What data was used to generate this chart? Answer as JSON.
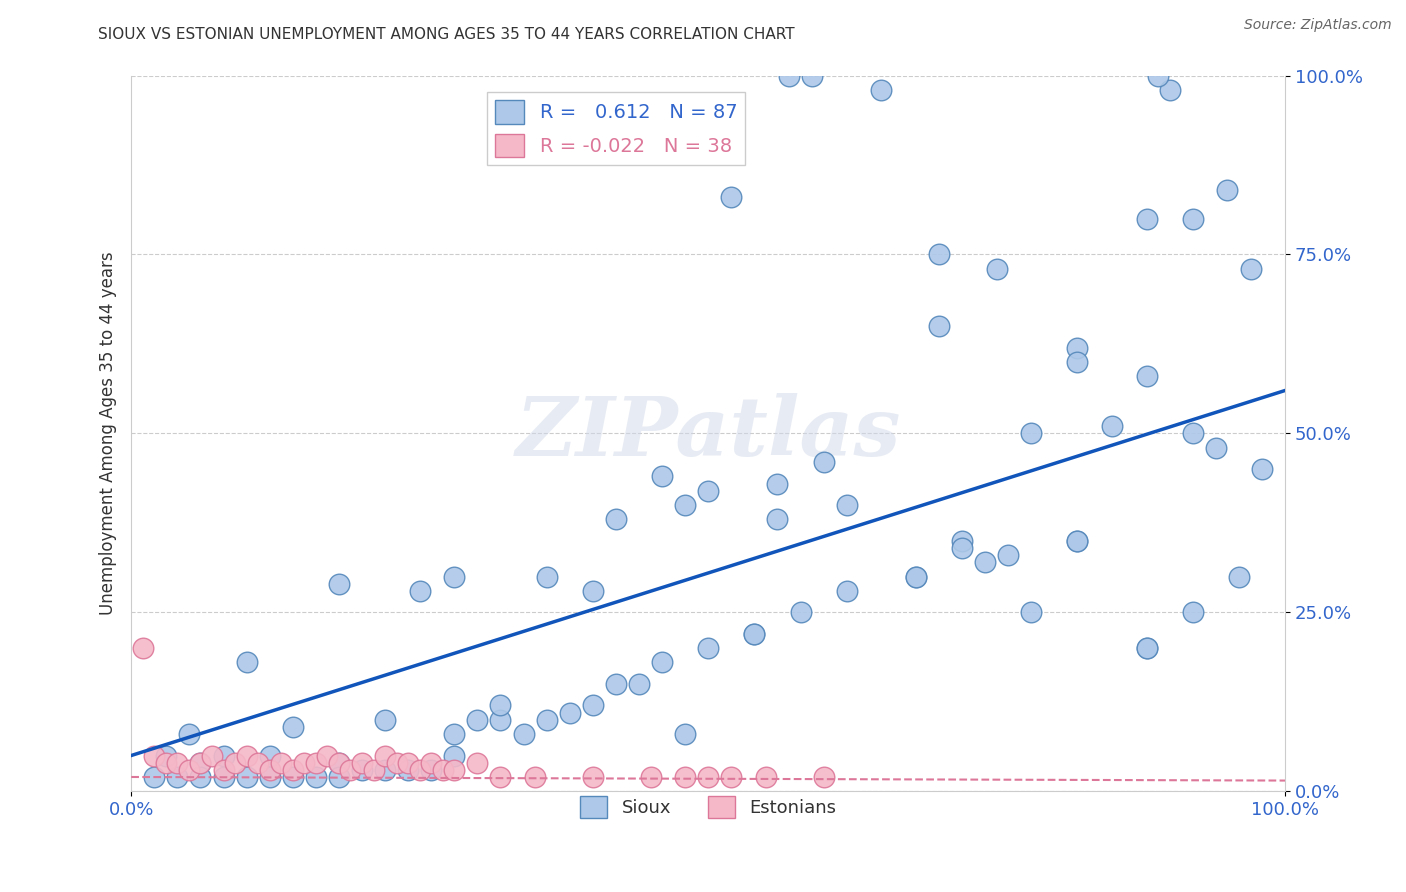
{
  "title": "SIOUX VS ESTONIAN UNEMPLOYMENT AMONG AGES 35 TO 44 YEARS CORRELATION CHART",
  "source": "Source: ZipAtlas.com",
  "ylabel": "Unemployment Among Ages 35 to 44 years",
  "xlim": [
    0,
    1
  ],
  "ylim": [
    0,
    1
  ],
  "xticks": [
    0.0,
    1.0
  ],
  "yticks": [
    0.0,
    0.25,
    0.5,
    0.75,
    1.0
  ],
  "xticklabels": [
    "0.0%",
    "100.0%"
  ],
  "yticklabels": [
    "0.0%",
    "25.0%",
    "50.0%",
    "75.0%",
    "100.0%"
  ],
  "sioux_color": "#adc8e8",
  "sioux_edge": "#5588bb",
  "estonian_color": "#f5b8c8",
  "estonian_edge": "#dd7799",
  "sioux_R": 0.612,
  "sioux_N": 87,
  "estonian_R": -0.022,
  "estonian_N": 38,
  "sioux_line_color": "#1155bb",
  "estonian_line_color": "#dd7799",
  "sioux_line_x0": 0.0,
  "sioux_line_y0": 0.05,
  "sioux_line_x1": 1.0,
  "sioux_line_y1": 0.56,
  "estonian_line_x0": 0.0,
  "estonian_line_y0": 0.02,
  "estonian_line_x1": 1.0,
  "estonian_line_y1": 0.015,
  "watermark_text": "ZIPatlas",
  "background_color": "#ffffff",
  "legend_text_color": "#3366cc",
  "sioux_x": [
    0.57,
    0.59,
    0.65,
    0.9,
    0.89,
    0.52,
    0.7,
    0.75,
    0.88,
    0.92,
    0.95,
    0.97,
    0.92,
    0.85,
    0.78,
    0.82,
    0.7,
    0.88,
    0.6,
    0.36,
    0.4,
    0.28,
    0.25,
    0.18,
    0.14,
    0.1,
    0.08,
    0.05,
    0.03,
    0.06,
    0.12,
    0.18,
    0.22,
    0.28,
    0.32,
    0.38,
    0.42,
    0.48,
    0.54,
    0.56,
    0.62,
    0.68,
    0.72,
    0.78,
    0.82,
    0.88,
    0.92,
    0.96,
    0.98,
    0.02,
    0.04,
    0.06,
    0.08,
    0.1,
    0.12,
    0.14,
    0.16,
    0.18,
    0.2,
    0.22,
    0.24,
    0.26,
    0.28,
    0.3,
    0.34,
    0.36,
    0.4,
    0.44,
    0.46,
    0.5,
    0.54,
    0.58,
    0.62,
    0.68,
    0.74,
    0.82,
    0.88,
    0.94,
    0.5,
    0.46,
    0.32,
    0.56,
    0.48,
    0.42,
    0.72,
    0.76,
    0.82
  ],
  "sioux_y": [
    1.0,
    1.0,
    0.98,
    0.98,
    1.0,
    0.83,
    0.75,
    0.73,
    0.8,
    0.8,
    0.84,
    0.73,
    0.5,
    0.51,
    0.5,
    0.62,
    0.65,
    0.58,
    0.46,
    0.3,
    0.28,
    0.3,
    0.28,
    0.29,
    0.09,
    0.18,
    0.05,
    0.08,
    0.05,
    0.04,
    0.05,
    0.04,
    0.1,
    0.05,
    0.1,
    0.11,
    0.15,
    0.08,
    0.22,
    0.38,
    0.4,
    0.3,
    0.35,
    0.25,
    0.35,
    0.2,
    0.25,
    0.3,
    0.45,
    0.02,
    0.02,
    0.02,
    0.02,
    0.02,
    0.02,
    0.02,
    0.02,
    0.02,
    0.03,
    0.03,
    0.03,
    0.03,
    0.08,
    0.1,
    0.08,
    0.1,
    0.12,
    0.15,
    0.18,
    0.2,
    0.22,
    0.25,
    0.28,
    0.3,
    0.32,
    0.6,
    0.2,
    0.48,
    0.42,
    0.44,
    0.12,
    0.43,
    0.4,
    0.38,
    0.34,
    0.33,
    0.35
  ],
  "estonian_x": [
    0.01,
    0.02,
    0.03,
    0.04,
    0.05,
    0.06,
    0.07,
    0.08,
    0.09,
    0.1,
    0.11,
    0.12,
    0.13,
    0.14,
    0.15,
    0.16,
    0.17,
    0.18,
    0.19,
    0.2,
    0.21,
    0.22,
    0.23,
    0.24,
    0.25,
    0.26,
    0.27,
    0.28,
    0.3,
    0.32,
    0.35,
    0.4,
    0.45,
    0.5,
    0.55,
    0.6,
    0.48,
    0.52
  ],
  "estonian_y": [
    0.2,
    0.05,
    0.04,
    0.04,
    0.03,
    0.04,
    0.05,
    0.03,
    0.04,
    0.05,
    0.04,
    0.03,
    0.04,
    0.03,
    0.04,
    0.04,
    0.05,
    0.04,
    0.03,
    0.04,
    0.03,
    0.05,
    0.04,
    0.04,
    0.03,
    0.04,
    0.03,
    0.03,
    0.04,
    0.02,
    0.02,
    0.02,
    0.02,
    0.02,
    0.02,
    0.02,
    0.02,
    0.02
  ]
}
